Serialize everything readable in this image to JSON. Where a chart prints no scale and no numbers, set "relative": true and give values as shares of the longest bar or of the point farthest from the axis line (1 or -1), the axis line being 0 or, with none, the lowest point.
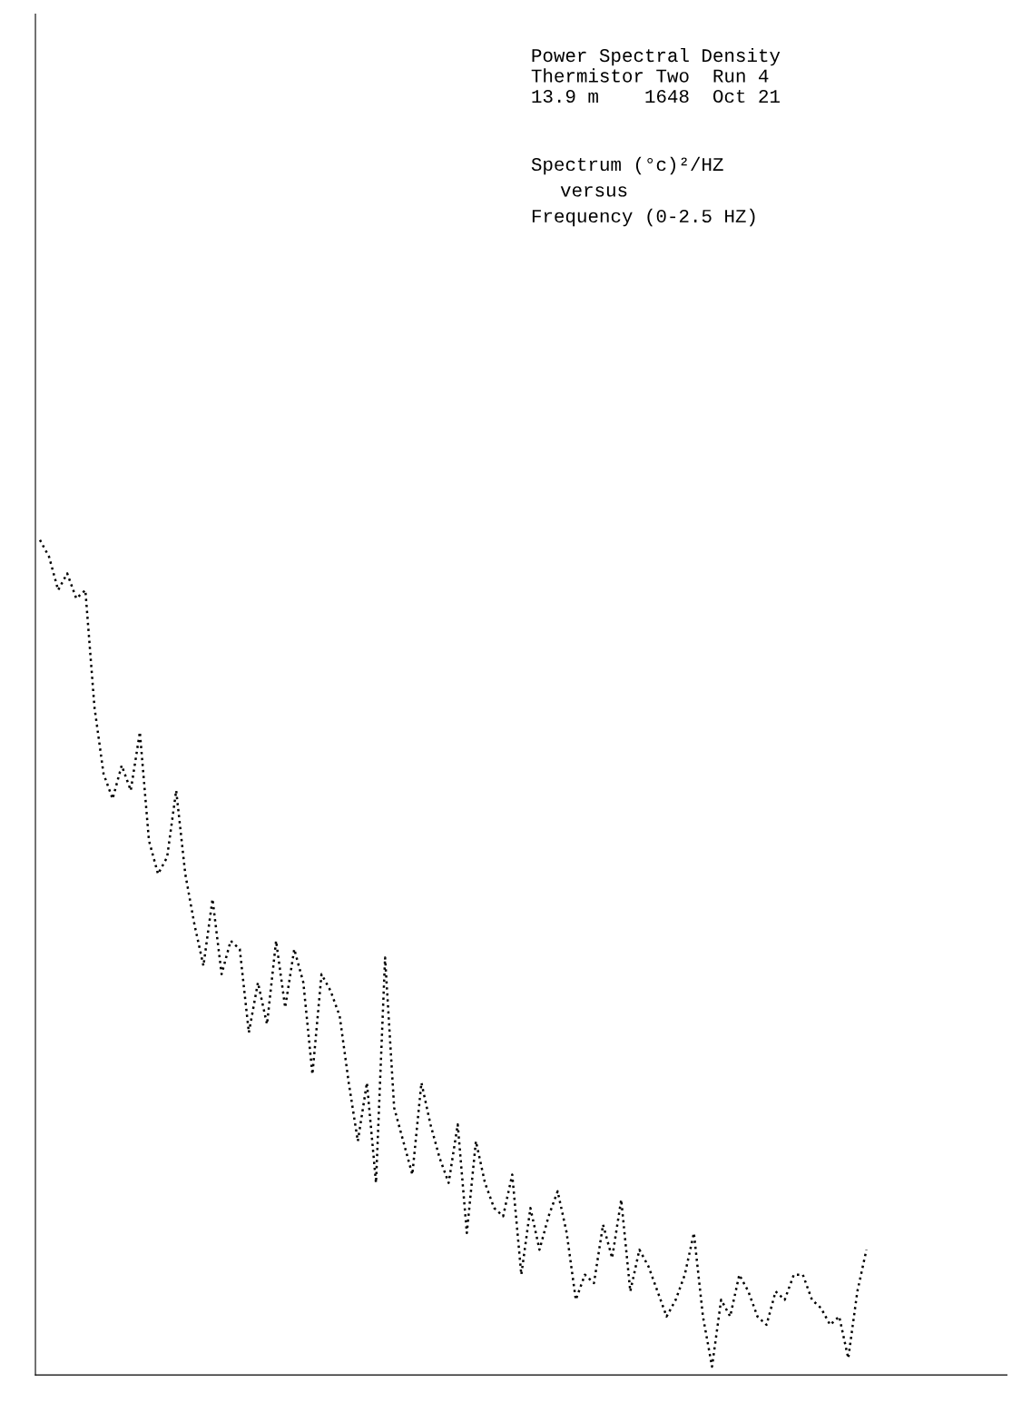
{
  "chart_data": {
    "type": "line",
    "title": "Power Spectral Density",
    "subtitle": "Thermistor Two  Run 4\n13.9 m    1648  Oct 21",
    "annotations": [
      "Spectrum (°c)²/HZ",
      "versus",
      "Frequency (0-2.5 HZ)"
    ],
    "relative": true,
    "line_style": "dotted",
    "categories": [
      null,
      null,
      null,
      null,
      null,
      null,
      null,
      null,
      null,
      null,
      null,
      null,
      null,
      null,
      null,
      null,
      null,
      null,
      null,
      null,
      null,
      null,
      null,
      null,
      null,
      null,
      null,
      null,
      null,
      null,
      null,
      null,
      null,
      null,
      null,
      null,
      null,
      null,
      null,
      null,
      null,
      null,
      null,
      null,
      null,
      null,
      null,
      null,
      null,
      null,
      null,
      null,
      null,
      null,
      null,
      null,
      null,
      null,
      null,
      null,
      null,
      null,
      null,
      null,
      null,
      null,
      null,
      null,
      null,
      null,
      null,
      null,
      null,
      null,
      null,
      null,
      null,
      null,
      null,
      null,
      null,
      null,
      null,
      null,
      null,
      null,
      null,
      null,
      null,
      null,
      null,
      null
    ],
    "series": [
      {
        "color": "#000000",
        "values": [
          1.0,
          0.98,
          0.94,
          0.96,
          0.93,
          0.94,
          0.8,
          0.72,
          0.69,
          0.73,
          0.7,
          0.77,
          0.64,
          0.6,
          0.62,
          0.7,
          0.6,
          0.54,
          0.49,
          0.57,
          0.48,
          0.52,
          0.51,
          0.41,
          0.47,
          0.42,
          0.52,
          0.44,
          0.51,
          0.47,
          0.36,
          0.48,
          0.46,
          0.43,
          0.35,
          0.28,
          0.35,
          0.23,
          0.5,
          0.32,
          0.28,
          0.24,
          0.35,
          0.3,
          0.26,
          0.23,
          0.3,
          0.17,
          0.28,
          0.23,
          0.2,
          0.19,
          0.24,
          0.12,
          0.2,
          0.15,
          0.19,
          0.22,
          0.17,
          0.09,
          0.12,
          0.11,
          0.18,
          0.14,
          0.21,
          0.1,
          0.15,
          0.13,
          0.1,
          0.07,
          0.09,
          0.12,
          0.17,
          0.07,
          0.01,
          0.09,
          0.07,
          0.12,
          0.1,
          0.07,
          0.06,
          0.1,
          0.09,
          0.12,
          0.12,
          0.09,
          0.08,
          0.06,
          0.07,
          0.02,
          0.1,
          0.15
        ]
      }
    ]
  }
}
